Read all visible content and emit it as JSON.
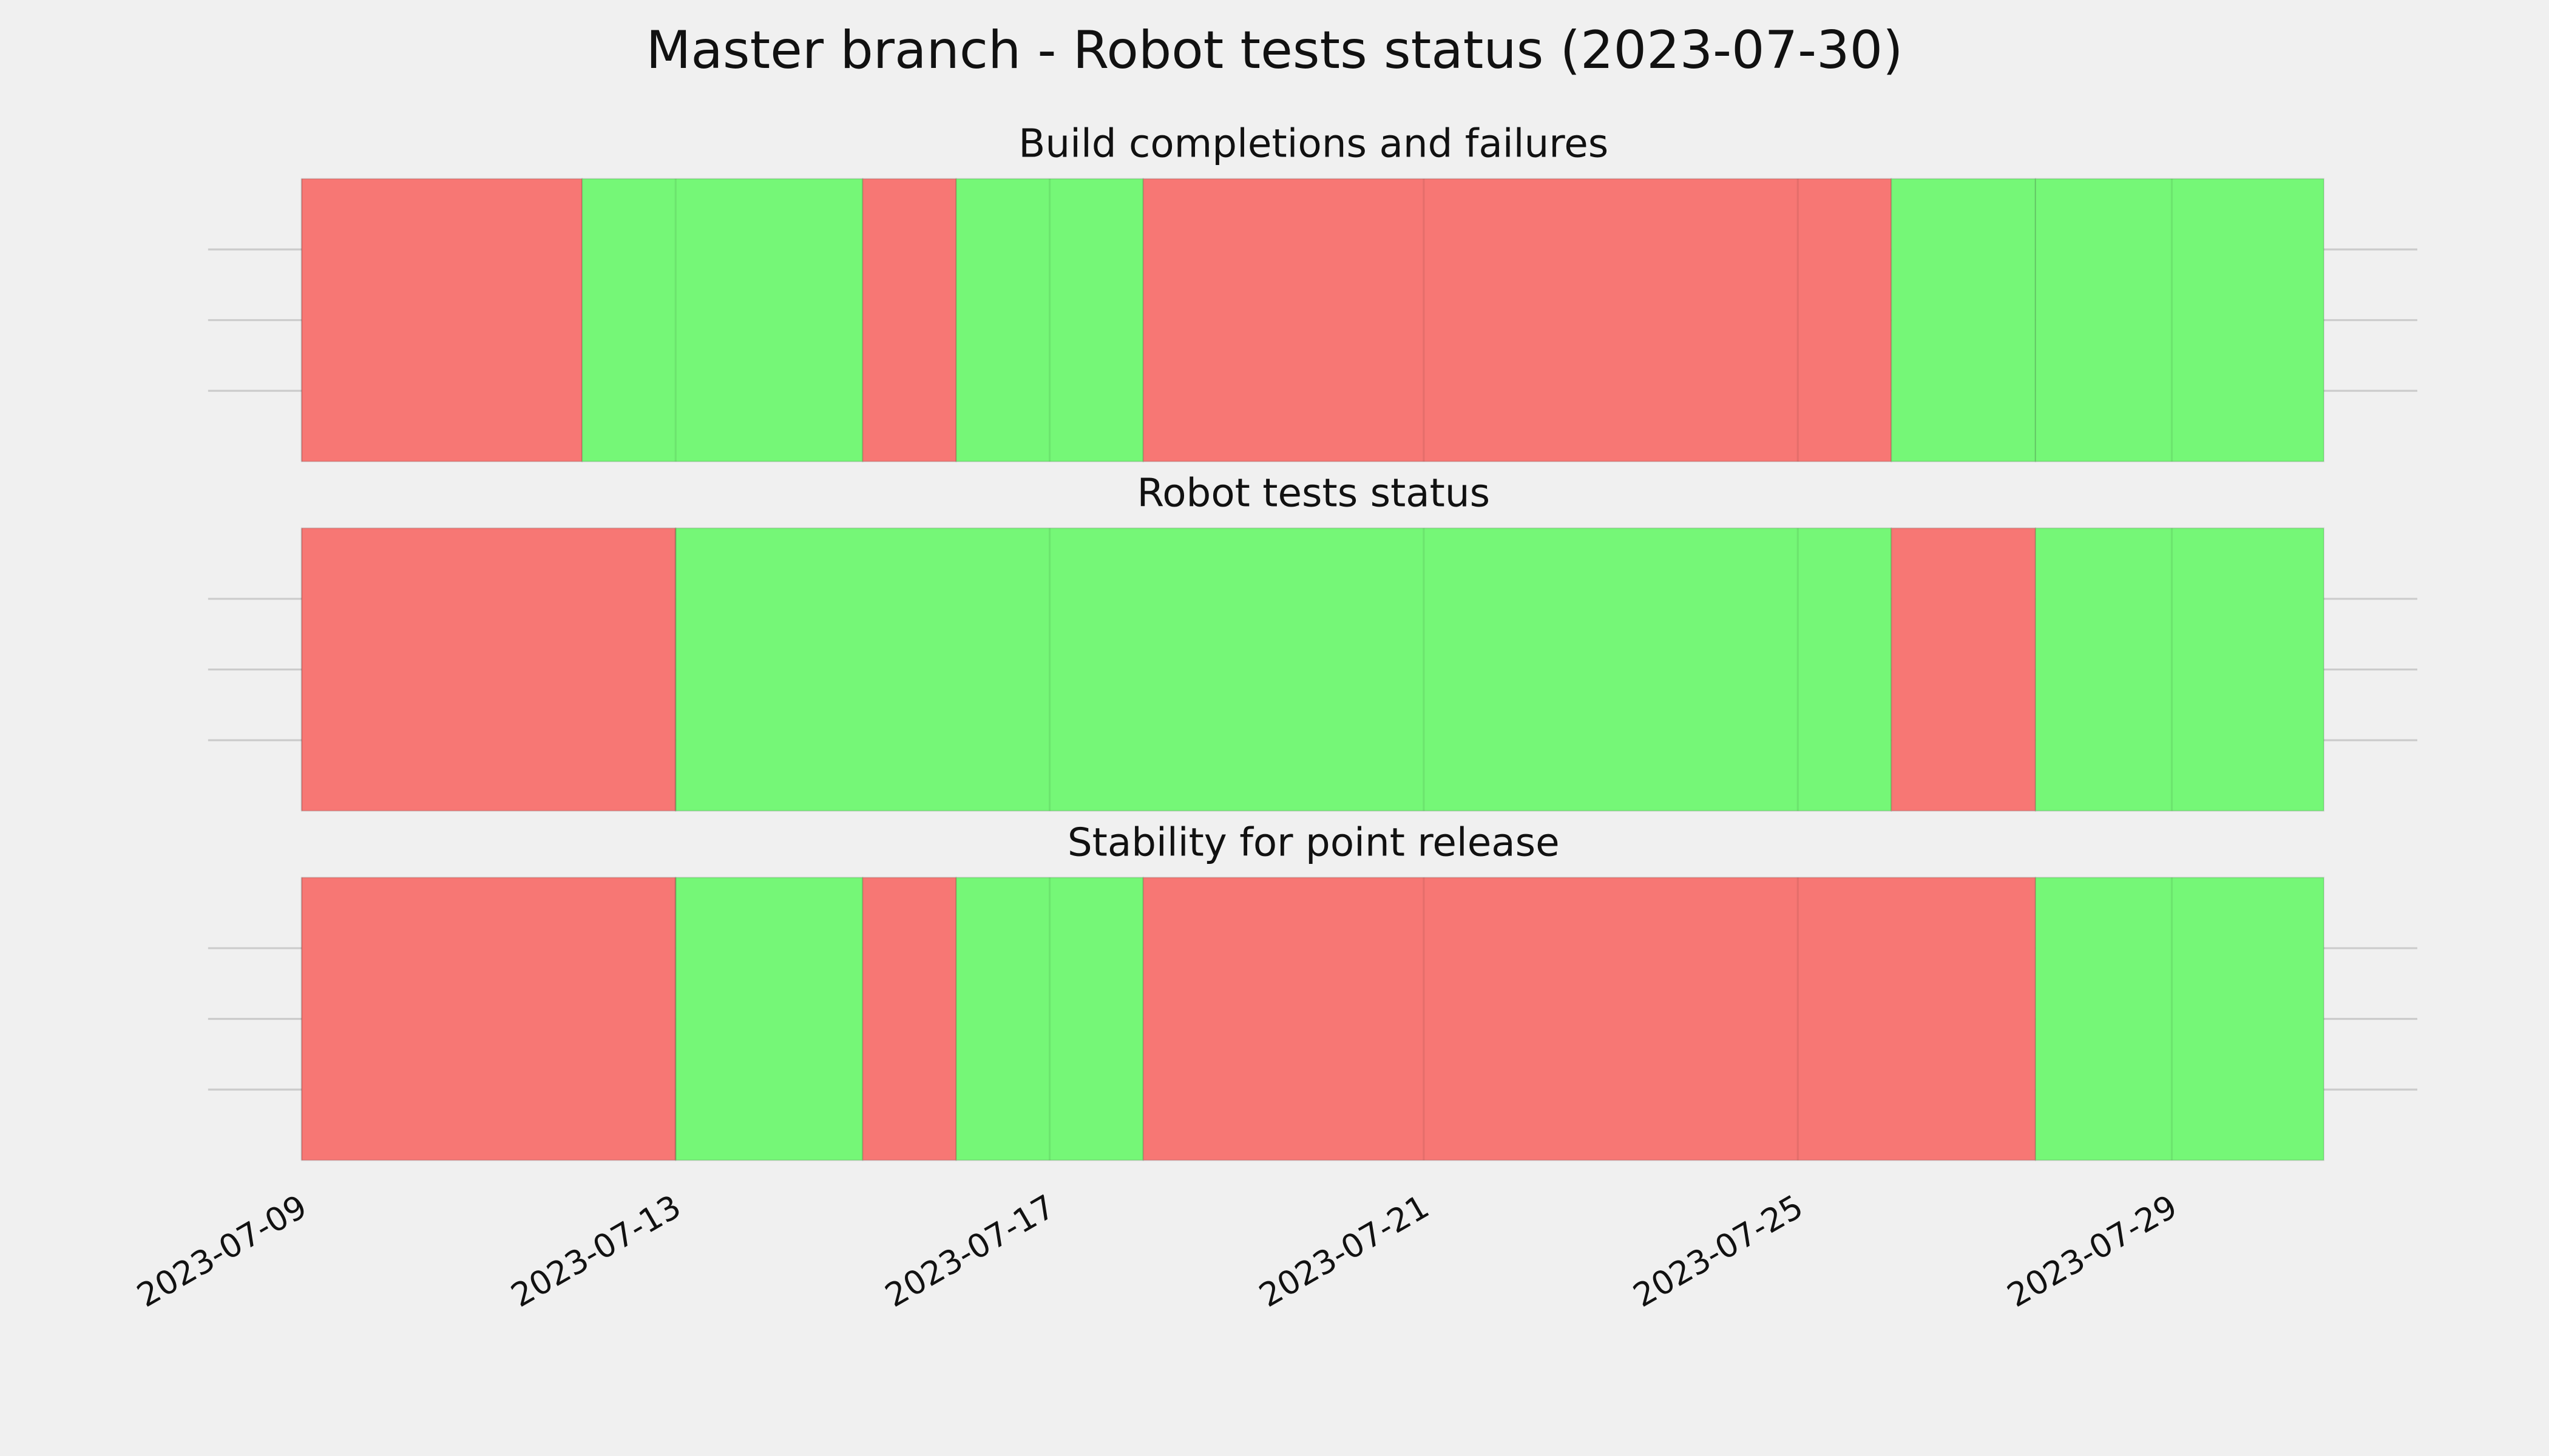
{
  "title": "Master branch - Robot tests status (2023-07-30)",
  "chart_data": [
    {
      "type": "timeline",
      "title": "Build completions and failures",
      "segments": [
        {
          "start": "2023-07-09",
          "end": "2023-07-12",
          "color": "#f77774"
        },
        {
          "start": "2023-07-12",
          "end": "2023-07-15",
          "color": "#75f777"
        },
        {
          "start": "2023-07-15",
          "end": "2023-07-16",
          "color": "#f77774"
        },
        {
          "start": "2023-07-16",
          "end": "2023-07-18",
          "color": "#75f777"
        },
        {
          "start": "2023-07-18",
          "end": "2023-07-26",
          "color": "#f77774"
        },
        {
          "start": "2023-07-26",
          "end": "2023-07-27T13:00",
          "color": "#75f777"
        },
        {
          "start": "2023-07-27T13:00",
          "end": "2023-07-30T15:00",
          "color": "#75f777"
        }
      ],
      "xlim": [
        "2023-07-08",
        "2023-07-31T15:00"
      ],
      "xticks": [
        "2023-07-09",
        "2023-07-13",
        "2023-07-17",
        "2023-07-21",
        "2023-07-25",
        "2023-07-29"
      ],
      "ylim": [
        0,
        1
      ],
      "yticks": [
        0.25,
        0.5,
        0.75
      ],
      "grid": true
    },
    {
      "type": "timeline",
      "title": "Robot tests status",
      "segments": [
        {
          "start": "2023-07-09",
          "end": "2023-07-13",
          "color": "#f77774"
        },
        {
          "start": "2023-07-13",
          "end": "2023-07-26",
          "color": "#75f777"
        },
        {
          "start": "2023-07-26",
          "end": "2023-07-27T13:00",
          "color": "#f77774"
        },
        {
          "start": "2023-07-27T13:00",
          "end": "2023-07-30T15:00",
          "color": "#75f777"
        }
      ],
      "xlim": [
        "2023-07-08",
        "2023-07-31T15:00"
      ],
      "xticks": [
        "2023-07-09",
        "2023-07-13",
        "2023-07-17",
        "2023-07-21",
        "2023-07-25",
        "2023-07-29"
      ],
      "ylim": [
        0,
        1
      ],
      "yticks": [
        0.25,
        0.5,
        0.75
      ],
      "grid": true
    },
    {
      "type": "timeline",
      "title": "Stability for point release",
      "segments": [
        {
          "start": "2023-07-09",
          "end": "2023-07-13",
          "color": "#f77774"
        },
        {
          "start": "2023-07-13",
          "end": "2023-07-15",
          "color": "#75f777"
        },
        {
          "start": "2023-07-15",
          "end": "2023-07-16",
          "color": "#f77774"
        },
        {
          "start": "2023-07-16",
          "end": "2023-07-18",
          "color": "#75f777"
        },
        {
          "start": "2023-07-18",
          "end": "2023-07-27T13:00",
          "color": "#f77774"
        },
        {
          "start": "2023-07-27T13:00",
          "end": "2023-07-30T15:00",
          "color": "#75f777"
        }
      ],
      "xlim": [
        "2023-07-08",
        "2023-07-31T15:00"
      ],
      "xticks": [
        "2023-07-09",
        "2023-07-13",
        "2023-07-17",
        "2023-07-21",
        "2023-07-25",
        "2023-07-29"
      ],
      "ylim": [
        0,
        1
      ],
      "yticks": [
        0.25,
        0.5,
        0.75
      ],
      "grid": true
    }
  ]
}
